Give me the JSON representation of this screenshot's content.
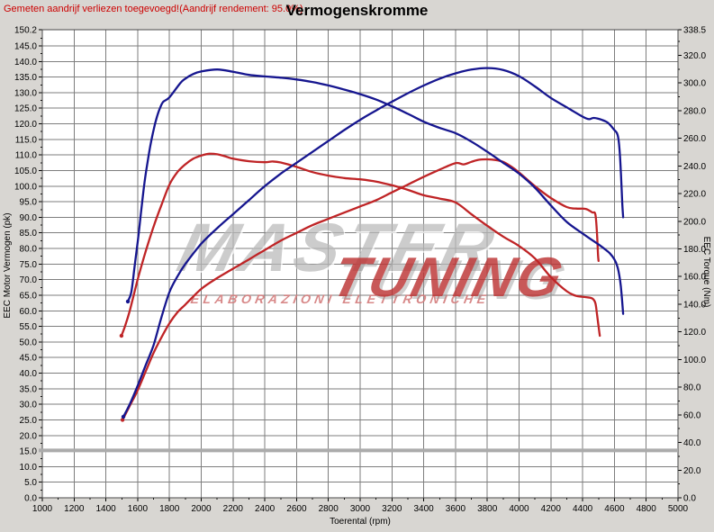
{
  "header": {
    "note": "Gemeten aandrijf verliezen toegevoegd!(Aandrijf rendement: 95.0%)",
    "title": "Vermogenskromme"
  },
  "watermark": {
    "line1": "MASTER",
    "line2": "ELABORAZIONI ELETTRONICHE",
    "line3": "TUNING"
  },
  "chart_data": {
    "type": "line",
    "title": "Vermogenskromme",
    "xlabel": "Toerental (rpm)",
    "ylabel_left": "EEC Motor Vermogen (pk)",
    "ylabel_right": "EEC Torque (Nm)",
    "grid": true,
    "legend": "none",
    "x_range": [
      1000,
      5000
    ],
    "x_ticks": [
      1000,
      1200,
      1400,
      1600,
      1800,
      2000,
      2200,
      2400,
      2600,
      2800,
      3000,
      3200,
      3400,
      3600,
      3800,
      4000,
      4200,
      4400,
      4600,
      4800,
      5000
    ],
    "x_minor_step": 100,
    "y_left_range": [
      0,
      150.2
    ],
    "y_left_ticks": [
      0,
      5,
      10,
      15,
      20,
      25,
      30,
      35,
      40,
      45,
      50,
      55,
      60,
      65,
      70,
      75,
      80,
      85,
      90,
      95,
      100,
      105,
      110,
      115,
      120,
      125,
      130,
      135,
      140,
      145,
      150.2
    ],
    "y_left_minor_step": 2.5,
    "y_right_range": [
      0,
      338.5
    ],
    "y_right_ticks": [
      0,
      20,
      40,
      60,
      80,
      100,
      120,
      140,
      160,
      180,
      200,
      220,
      240,
      260,
      280,
      300,
      320,
      338.5
    ],
    "y_right_minor_step": 10,
    "grid_color": "#7e7e7e",
    "plot_bg": "#ffffff",
    "border_color": "#4a4a4a",
    "reference_line": {
      "axis": "left",
      "value": 15.2,
      "color": "#ababab",
      "width": 4
    },
    "series": [
      {
        "name": "red-torque-curve",
        "axis": "right",
        "color": "#bf2426",
        "points": [
          [
            1498,
            117.2
          ],
          [
            1520,
            124
          ],
          [
            1550,
            135.2
          ],
          [
            1600,
            157.8
          ],
          [
            1650,
            178
          ],
          [
            1700,
            196.1
          ],
          [
            1750,
            211.8
          ],
          [
            1800,
            226.5
          ],
          [
            1850,
            235.5
          ],
          [
            1900,
            241.1
          ],
          [
            1950,
            245.2
          ],
          [
            2000,
            247.5
          ],
          [
            2050,
            248.8
          ],
          [
            2100,
            248.4
          ],
          [
            2150,
            247
          ],
          [
            2200,
            245.2
          ],
          [
            2300,
            243.4
          ],
          [
            2400,
            242.7
          ],
          [
            2450,
            243.2
          ],
          [
            2500,
            242.5
          ],
          [
            2600,
            239.3
          ],
          [
            2700,
            235.5
          ],
          [
            2800,
            233
          ],
          [
            2900,
            231.2
          ],
          [
            3000,
            230.3
          ],
          [
            3100,
            228.7
          ],
          [
            3200,
            226
          ],
          [
            3300,
            222.7
          ],
          [
            3400,
            218.8
          ],
          [
            3500,
            216.4
          ],
          [
            3600,
            213.6
          ],
          [
            3700,
            205.1
          ],
          [
            3800,
            196.7
          ],
          [
            3900,
            188.9
          ],
          [
            4000,
            182.1
          ],
          [
            4100,
            173.1
          ],
          [
            4200,
            159.6
          ],
          [
            4300,
            149.4
          ],
          [
            4360,
            146
          ],
          [
            4420,
            145.1
          ],
          [
            4460,
            144.2
          ],
          [
            4480,
            140.9
          ],
          [
            4490,
            133
          ],
          [
            4500,
            124
          ],
          [
            4508,
            117.2
          ]
        ]
      },
      {
        "name": "red-power-curve",
        "axis": "left",
        "color": "#bf2426",
        "points": [
          [
            1505,
            25
          ],
          [
            1550,
            29.5
          ],
          [
            1600,
            34.5
          ],
          [
            1650,
            40.5
          ],
          [
            1700,
            46.5
          ],
          [
            1750,
            51.5
          ],
          [
            1800,
            56
          ],
          [
            1850,
            59.5
          ],
          [
            1900,
            62
          ],
          [
            2000,
            67
          ],
          [
            2100,
            70.5
          ],
          [
            2200,
            73.5
          ],
          [
            2300,
            76.5
          ],
          [
            2400,
            79.5
          ],
          [
            2500,
            82.5
          ],
          [
            2600,
            85
          ],
          [
            2700,
            87.5
          ],
          [
            2800,
            89.5
          ],
          [
            2900,
            91.5
          ],
          [
            3000,
            93.5
          ],
          [
            3100,
            95.5
          ],
          [
            3200,
            98
          ],
          [
            3300,
            100.5
          ],
          [
            3400,
            103
          ],
          [
            3500,
            105.3
          ],
          [
            3600,
            107.4
          ],
          [
            3650,
            107
          ],
          [
            3700,
            107.8
          ],
          [
            3750,
            108.5
          ],
          [
            3800,
            108.6
          ],
          [
            3850,
            108.4
          ],
          [
            3900,
            107.8
          ],
          [
            3950,
            106.3
          ],
          [
            4000,
            104.4
          ],
          [
            4100,
            100
          ],
          [
            4200,
            96.2
          ],
          [
            4300,
            93.3
          ],
          [
            4360,
            92.8
          ],
          [
            4420,
            92.7
          ],
          [
            4460,
            91.6
          ],
          [
            4480,
            91
          ],
          [
            4490,
            85
          ],
          [
            4497,
            78
          ],
          [
            4500,
            76
          ]
        ]
      },
      {
        "name": "blue-torque-curve",
        "axis": "right",
        "color": "#16168f",
        "points": [
          [
            1538,
            142
          ],
          [
            1560,
            148.7
          ],
          [
            1580,
            166.8
          ],
          [
            1600,
            184.8
          ],
          [
            1620,
            205.1
          ],
          [
            1640,
            225.4
          ],
          [
            1660,
            241.1
          ],
          [
            1680,
            254.7
          ],
          [
            1700,
            266
          ],
          [
            1720,
            275
          ],
          [
            1740,
            281.7
          ],
          [
            1760,
            286.2
          ],
          [
            1800,
            289.6
          ],
          [
            1867,
            299.7
          ],
          [
            1900,
            303.1
          ],
          [
            1950,
            306.5
          ],
          [
            2000,
            308.3
          ],
          [
            2100,
            309.7
          ],
          [
            2200,
            308.1
          ],
          [
            2300,
            305.8
          ],
          [
            2400,
            304.7
          ],
          [
            2500,
            303.8
          ],
          [
            2600,
            302.5
          ],
          [
            2700,
            300.7
          ],
          [
            2800,
            298.2
          ],
          [
            2900,
            295.2
          ],
          [
            3000,
            291.9
          ],
          [
            3100,
            288
          ],
          [
            3200,
            283.1
          ],
          [
            3300,
            277.7
          ],
          [
            3400,
            272
          ],
          [
            3500,
            267.5
          ],
          [
            3600,
            263.7
          ],
          [
            3700,
            257.6
          ],
          [
            3800,
            250.2
          ],
          [
            3900,
            242.3
          ],
          [
            4000,
            234.4
          ],
          [
            4100,
            224.2
          ],
          [
            4200,
            211.4
          ],
          [
            4300,
            199.5
          ],
          [
            4400,
            191.1
          ],
          [
            4500,
            183.2
          ],
          [
            4540,
            179.8
          ],
          [
            4570,
            176.9
          ],
          [
            4600,
            172.4
          ],
          [
            4620,
            166.8
          ],
          [
            4635,
            157.8
          ],
          [
            4645,
            147.6
          ],
          [
            4655,
            133
          ]
        ]
      },
      {
        "name": "blue-power-curve",
        "axis": "left",
        "color": "#16168f",
        "points": [
          [
            1510,
            26
          ],
          [
            1550,
            30
          ],
          [
            1600,
            36
          ],
          [
            1650,
            42.5
          ],
          [
            1700,
            49
          ],
          [
            1750,
            58
          ],
          [
            1800,
            66
          ],
          [
            1850,
            71
          ],
          [
            1900,
            75
          ],
          [
            2000,
            81.5
          ],
          [
            2100,
            86.5
          ],
          [
            2200,
            91
          ],
          [
            2300,
            95.5
          ],
          [
            2400,
            100
          ],
          [
            2500,
            104
          ],
          [
            2600,
            107.5
          ],
          [
            2700,
            111
          ],
          [
            2800,
            114.5
          ],
          [
            2900,
            118
          ],
          [
            3000,
            121.3
          ],
          [
            3100,
            124.3
          ],
          [
            3200,
            127.1
          ],
          [
            3300,
            129.8
          ],
          [
            3400,
            132.3
          ],
          [
            3500,
            134.5
          ],
          [
            3600,
            136.2
          ],
          [
            3700,
            137.4
          ],
          [
            3800,
            137.9
          ],
          [
            3900,
            137.3
          ],
          [
            4000,
            135.3
          ],
          [
            4100,
            132
          ],
          [
            4200,
            128.3
          ],
          [
            4300,
            125.3
          ],
          [
            4400,
            122.3
          ],
          [
            4440,
            121.5
          ],
          [
            4470,
            121.9
          ],
          [
            4520,
            121.3
          ],
          [
            4560,
            120.3
          ],
          [
            4600,
            118
          ],
          [
            4620,
            116.5
          ],
          [
            4632,
            112
          ],
          [
            4642,
            103
          ],
          [
            4650,
            94
          ],
          [
            4655,
            90
          ]
        ]
      }
    ]
  }
}
